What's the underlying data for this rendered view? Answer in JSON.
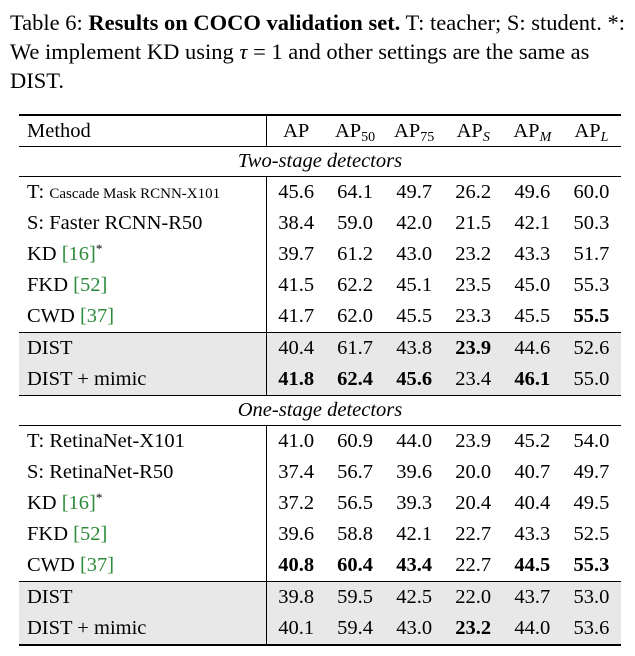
{
  "caption": {
    "label": "Table 6:",
    "title": "Results on COCO validation set.",
    "text1": "T: teacher; S: student. *: We implement KD using",
    "tau": "τ",
    "eq": " = 1 and other settings are the same as DIST."
  },
  "header": {
    "method": "Method",
    "ap": "AP",
    "ap50_base": "AP",
    "ap50_sub": "50",
    "ap75_base": "AP",
    "ap75_sub": "75",
    "aps_base": "AP",
    "aps_sub": "S",
    "apm_base": "AP",
    "apm_sub": "M",
    "apl_base": "AP",
    "apl_sub": "L"
  },
  "sections": {
    "two_stage": "Two-stage detectors",
    "one_stage": "One-stage detectors"
  },
  "two_stage_rows": [
    {
      "prefix": "T: ",
      "name": "Cascade Mask RCNN-X101",
      "values": [
        "45.6",
        "64.1",
        "49.7",
        "26.2",
        "49.6",
        "60.0"
      ]
    },
    {
      "name": "S: Faster RCNN-R50",
      "values": [
        "38.4",
        "59.0",
        "42.0",
        "21.5",
        "42.1",
        "50.3"
      ]
    },
    {
      "name": "KD ",
      "cite": "[16]",
      "sup": "*",
      "values": [
        "39.7",
        "61.2",
        "43.0",
        "23.2",
        "43.3",
        "51.7"
      ]
    },
    {
      "name": "FKD ",
      "cite": "[52]",
      "values": [
        "41.5",
        "62.2",
        "45.1",
        "23.5",
        "45.0",
        "55.3"
      ]
    },
    {
      "name": "CWD ",
      "cite": "[37]",
      "values": [
        "41.7",
        "62.0",
        "45.5",
        "23.3",
        "45.5",
        "55.5"
      ]
    },
    {
      "name": "DIST",
      "values": [
        "40.4",
        "61.7",
        "43.8",
        "23.9",
        "44.6",
        "52.6"
      ]
    },
    {
      "name": "DIST + mimic",
      "values": [
        "41.8",
        "62.4",
        "45.6",
        "23.4",
        "46.1",
        "55.0"
      ]
    }
  ],
  "one_stage_rows": [
    {
      "name": "T: RetinaNet-X101",
      "values": [
        "41.0",
        "60.9",
        "44.0",
        "23.9",
        "45.2",
        "54.0"
      ]
    },
    {
      "name": "S: RetinaNet-R50",
      "values": [
        "37.4",
        "56.7",
        "39.6",
        "20.0",
        "40.7",
        "49.7"
      ]
    },
    {
      "name": "KD ",
      "cite": "[16]",
      "sup": "*",
      "values": [
        "37.2",
        "56.5",
        "39.3",
        "20.4",
        "40.4",
        "49.5"
      ]
    },
    {
      "name": "FKD ",
      "cite": "[52]",
      "values": [
        "39.6",
        "58.8",
        "42.1",
        "22.7",
        "43.3",
        "52.5"
      ]
    },
    {
      "name": "CWD ",
      "cite": "[37]",
      "values": [
        "40.8",
        "60.4",
        "43.4",
        "22.7",
        "44.5",
        "55.3"
      ]
    },
    {
      "name": "DIST",
      "values": [
        "39.8",
        "59.5",
        "42.5",
        "22.0",
        "43.7",
        "53.0"
      ]
    },
    {
      "name": "DIST + mimic",
      "values": [
        "40.1",
        "59.4",
        "43.0",
        "23.2",
        "44.0",
        "53.6"
      ]
    }
  ],
  "colors": {
    "citation": "#2e8b3a",
    "shade": "#e8e8e8"
  }
}
